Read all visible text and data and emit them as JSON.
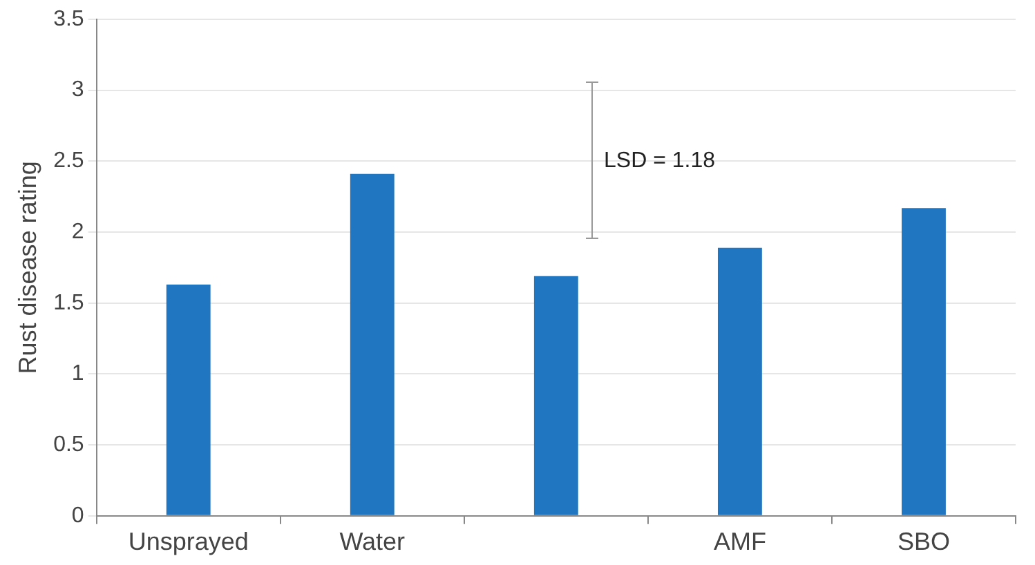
{
  "chart_data": {
    "type": "bar",
    "ylabel": "Rust disease rating",
    "categories": [
      "Unsprayed",
      "Water",
      null,
      "AMF",
      "SBO"
    ],
    "values": [
      1.63,
      2.41,
      1.69,
      1.89,
      2.17
    ],
    "color": "#2176c1",
    "ylim": [
      0,
      3.5
    ],
    "yticks": [
      0,
      0.5,
      1,
      1.5,
      2,
      2.5,
      3,
      3.5
    ],
    "grid": "y",
    "annotations": [
      "LSD = 1.18"
    ]
  }
}
